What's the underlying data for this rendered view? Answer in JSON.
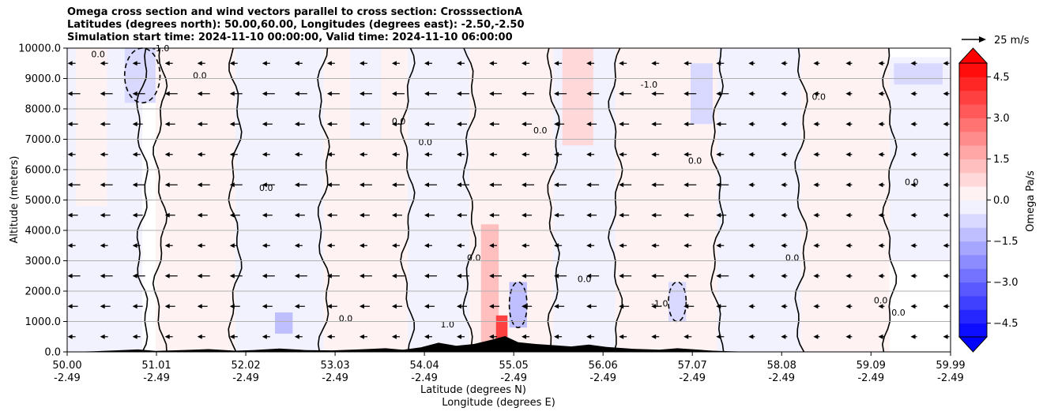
{
  "title": {
    "line1": "Omega cross section and wind vectors parallel to cross section: CrosssectionA",
    "line2": "Latitudes (degrees north): 50.00,60.00, Longitudes (degrees east): -2.50,-2.50",
    "line3": "Simulation start time: 2024-11-10 00:00:00, Valid time: 2024-11-10 06:00:00"
  },
  "reference_vector": {
    "label": "25 m/s",
    "speed": 25
  },
  "chart_data": {
    "type": "heatmap",
    "title": "Omega cross section and wind vectors parallel to cross section: CrosssectionA",
    "ylabel": "Altitude (meters)",
    "xlabel_line1": "Latitude (degrees N)",
    "xlabel_line2": "Longitude (degrees E)",
    "xlim": [
      50.0,
      59.99
    ],
    "ylim": [
      0.0,
      10000.0
    ],
    "grid": "horizontal",
    "x_ticks": [
      {
        "lat": "50.00",
        "lon": "-2.49",
        "value": 50.0
      },
      {
        "lat": "51.01",
        "lon": "-2.49",
        "value": 51.01
      },
      {
        "lat": "52.02",
        "lon": "-2.49",
        "value": 52.02
      },
      {
        "lat": "53.03",
        "lon": "-2.49",
        "value": 53.03
      },
      {
        "lat": "54.04",
        "lon": "-2.49",
        "value": 54.04
      },
      {
        "lat": "55.05",
        "lon": "-2.49",
        "value": 55.05
      },
      {
        "lat": "56.06",
        "lon": "-2.49",
        "value": 56.06
      },
      {
        "lat": "57.07",
        "lon": "-2.49",
        "value": 57.07
      },
      {
        "lat": "58.08",
        "lon": "-2.49",
        "value": 58.08
      },
      {
        "lat": "59.09",
        "lon": "-2.49",
        "value": 59.09
      },
      {
        "lat": "59.99",
        "lon": "-2.49",
        "value": 59.99
      }
    ],
    "y_ticks": [
      "0.0",
      "1000.0",
      "2000.0",
      "3000.0",
      "4000.0",
      "5000.0",
      "6000.0",
      "7000.0",
      "8000.0",
      "9000.0",
      "10000.0"
    ],
    "y_tick_values": [
      0,
      1000,
      2000,
      3000,
      4000,
      5000,
      6000,
      7000,
      8000,
      9000,
      10000
    ],
    "colorbar": {
      "label": "Omega Pa/s",
      "min": -5.0,
      "max": 5.0,
      "step": 0.5,
      "ticks": [
        "−4.5",
        "−3.0",
        "−1.5",
        "0.0",
        "1.5",
        "3.0",
        "4.5"
      ],
      "tick_values": [
        -4.5,
        -3.0,
        -1.5,
        0.0,
        1.5,
        3.0,
        4.5
      ],
      "extend": "both",
      "colormap": "bwr"
    },
    "omega_regions": [
      {
        "lat": [
          50.0,
          50.85
        ],
        "alt": [
          0,
          10000
        ],
        "omega": -0.3
      },
      {
        "lat": [
          50.1,
          50.45
        ],
        "alt": [
          4800,
          10000
        ],
        "omega": 0.4
      },
      {
        "lat": [
          50.65,
          51.05
        ],
        "alt": [
          8200,
          10000
        ],
        "omega": -1.0
      },
      {
        "lat": [
          51.0,
          51.9
        ],
        "alt": [
          0,
          10000
        ],
        "omega": 0.3
      },
      {
        "lat": [
          51.9,
          52.9
        ],
        "alt": [
          0,
          10000
        ],
        "omega": -0.3
      },
      {
        "lat": [
          52.35,
          52.55
        ],
        "alt": [
          600,
          1300
        ],
        "omega": -1.2
      },
      {
        "lat": [
          52.9,
          53.85
        ],
        "alt": [
          0,
          10000
        ],
        "omega": 0.3
      },
      {
        "lat": [
          53.2,
          53.55
        ],
        "alt": [
          7000,
          10000
        ],
        "omega": -0.3
      },
      {
        "lat": [
          53.85,
          54.55
        ],
        "alt": [
          0,
          10000
        ],
        "omega": -0.3
      },
      {
        "lat": [
          54.55,
          55.5
        ],
        "alt": [
          0,
          10000
        ],
        "omega": 0.4
      },
      {
        "lat": [
          54.68,
          54.88
        ],
        "alt": [
          0,
          4200
        ],
        "omega": 1.0
      },
      {
        "lat": [
          54.85,
          54.98
        ],
        "alt": [
          0,
          1200
        ],
        "omega": 3.5
      },
      {
        "lat": [
          55.0,
          55.2
        ],
        "alt": [
          800,
          2300
        ],
        "omega": -1.2
      },
      {
        "lat": [
          55.5,
          56.2
        ],
        "alt": [
          0,
          10000
        ],
        "omega": -0.3
      },
      {
        "lat": [
          55.6,
          55.95
        ],
        "alt": [
          6800,
          10000
        ],
        "omega": 0.8
      },
      {
        "lat": [
          56.2,
          57.35
        ],
        "alt": [
          0,
          10000
        ],
        "omega": 0.3
      },
      {
        "lat": [
          56.8,
          57.0
        ],
        "alt": [
          1000,
          2300
        ],
        "omega": -0.9
      },
      {
        "lat": [
          57.05,
          57.3
        ],
        "alt": [
          7500,
          9500
        ],
        "omega": -0.8
      },
      {
        "lat": [
          57.35,
          58.3
        ],
        "alt": [
          0,
          10000
        ],
        "omega": -0.3
      },
      {
        "lat": [
          58.3,
          59.3
        ],
        "alt": [
          0,
          10000
        ],
        "omega": 0.3
      },
      {
        "lat": [
          58.4,
          59.0
        ],
        "alt": [
          2500,
          4200
        ],
        "omega": 0.3
      },
      {
        "lat": [
          59.3,
          59.99
        ],
        "alt": [
          3000,
          9700
        ],
        "omega": -0.3
      },
      {
        "lat": [
          59.35,
          59.9
        ],
        "alt": [
          8800,
          9500
        ],
        "omega": -1.0
      }
    ],
    "terrain": [
      [
        50.0,
        0
      ],
      [
        50.3,
        20
      ],
      [
        50.55,
        50
      ],
      [
        50.8,
        80
      ],
      [
        51.0,
        30
      ],
      [
        51.3,
        60
      ],
      [
        51.6,
        90
      ],
      [
        51.9,
        40
      ],
      [
        52.1,
        60
      ],
      [
        52.4,
        110
      ],
      [
        52.7,
        60
      ],
      [
        53.0,
        50
      ],
      [
        53.3,
        80
      ],
      [
        53.6,
        120
      ],
      [
        53.8,
        70
      ],
      [
        54.0,
        150
      ],
      [
        54.2,
        300
      ],
      [
        54.4,
        200
      ],
      [
        54.6,
        260
      ],
      [
        54.8,
        400
      ],
      [
        54.95,
        520
      ],
      [
        55.1,
        320
      ],
      [
        55.3,
        260
      ],
      [
        55.5,
        220
      ],
      [
        55.7,
        180
      ],
      [
        55.9,
        240
      ],
      [
        56.1,
        160
      ],
      [
        56.4,
        100
      ],
      [
        56.7,
        70
      ],
      [
        56.9,
        120
      ],
      [
        57.1,
        80
      ],
      [
        57.3,
        40
      ],
      [
        57.5,
        20
      ],
      [
        57.8,
        0
      ],
      [
        59.99,
        0
      ]
    ],
    "contour_levels": [
      -1.0,
      0.0,
      1.0
    ],
    "contour_labels": [
      {
        "text": "0.0",
        "lat": 50.35,
        "alt": 9700
      },
      {
        "text": "-1.0",
        "lat": 51.06,
        "alt": 9900
      },
      {
        "text": "0.0",
        "lat": 51.5,
        "alt": 9000
      },
      {
        "text": "0.0",
        "lat": 52.25,
        "alt": 5300
      },
      {
        "text": "0.0",
        "lat": 53.15,
        "alt": 1000
      },
      {
        "text": "0.0",
        "lat": 53.75,
        "alt": 7500
      },
      {
        "text": "0.0",
        "lat": 54.05,
        "alt": 6800
      },
      {
        "text": "0.0",
        "lat": 54.6,
        "alt": 3000
      },
      {
        "text": "1.0",
        "lat": 54.3,
        "alt": 800
      },
      {
        "text": "0.0",
        "lat": 55.35,
        "alt": 7200
      },
      {
        "text": "0.0",
        "lat": 55.85,
        "alt": 2300
      },
      {
        "text": "-1.0",
        "lat": 56.7,
        "alt": 1500
      },
      {
        "text": "-1.0",
        "lat": 56.58,
        "alt": 8700
      },
      {
        "text": "0.0",
        "lat": 57.1,
        "alt": 6200
      },
      {
        "text": "0.0",
        "lat": 58.2,
        "alt": 3000
      },
      {
        "text": "0.0",
        "lat": 58.5,
        "alt": 8300
      },
      {
        "text": "0.0",
        "lat": 59.2,
        "alt": 1600
      },
      {
        "text": "0.0",
        "lat": 59.4,
        "alt": 1200
      },
      {
        "text": "0.0",
        "lat": 59.55,
        "alt": 5500
      }
    ],
    "wind_vectors": {
      "lat_range": [
        50.05,
        59.95
      ],
      "alt_range": [
        500,
        9500
      ],
      "columns": 28,
      "rows": 10,
      "direction": "south",
      "typical_speed": 5,
      "calm_columns_lat_min": 57.6
    }
  }
}
